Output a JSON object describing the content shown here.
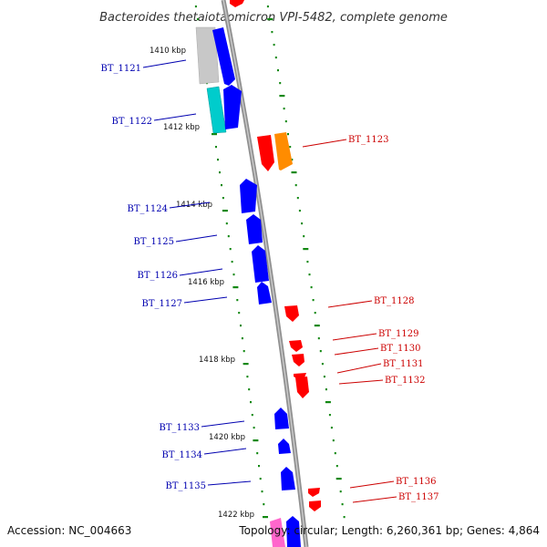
{
  "title": "Bacteroides thetaiotaomicron VPI-5482, complete genome",
  "footer": {
    "accession": "Accession: NC_004663",
    "topology": "Topology: circular; Length: 6,260,361 bp; Genes: 4,864"
  },
  "scale_labels": [
    "1410 kbp",
    "1412 kbp",
    "1414 kbp",
    "1416 kbp",
    "1418 kbp",
    "1420 kbp",
    "1422 kbp"
  ],
  "genes": [
    {
      "label": "BT_1121",
      "strand": "minus",
      "color": "#0000ff"
    },
    {
      "label": "BT_1122",
      "strand": "minus",
      "color": "#0000ff"
    },
    {
      "label": "BT_1123",
      "strand": "plus",
      "color": "#ff0000"
    },
    {
      "label": "BT_1124",
      "strand": "minus",
      "color": "#0000ff"
    },
    {
      "label": "BT_1125",
      "strand": "minus",
      "color": "#0000ff"
    },
    {
      "label": "BT_1126",
      "strand": "minus",
      "color": "#0000ff"
    },
    {
      "label": "BT_1127",
      "strand": "minus",
      "color": "#0000ff"
    },
    {
      "label": "BT_1128",
      "strand": "plus",
      "color": "#ff0000"
    },
    {
      "label": "BT_1129",
      "strand": "plus",
      "color": "#ff0000"
    },
    {
      "label": "BT_1130",
      "strand": "plus",
      "color": "#ff0000"
    },
    {
      "label": "BT_1131",
      "strand": "plus",
      "color": "#ff0000"
    },
    {
      "label": "BT_1132",
      "strand": "plus",
      "color": "#ff0000"
    },
    {
      "label": "BT_1133",
      "strand": "minus",
      "color": "#0000ff"
    },
    {
      "label": "BT_1134",
      "strand": "minus",
      "color": "#0000ff"
    },
    {
      "label": "BT_1135",
      "strand": "minus",
      "color": "#0000ff"
    },
    {
      "label": "BT_1136",
      "strand": "plus",
      "color": "#ff0000"
    },
    {
      "label": "BT_1137",
      "strand": "plus",
      "color": "#ff0000"
    }
  ],
  "colors": {
    "backbone": "#888888",
    "forward_cds": "#ff0000",
    "reverse_cds": "#0000ff",
    "rna_orange": "#ff8c00",
    "rna_cyan": "#00cccc",
    "gray_feature": "#c8c8c8",
    "pink_feature": "#ff66cc",
    "dots": "#118811"
  }
}
